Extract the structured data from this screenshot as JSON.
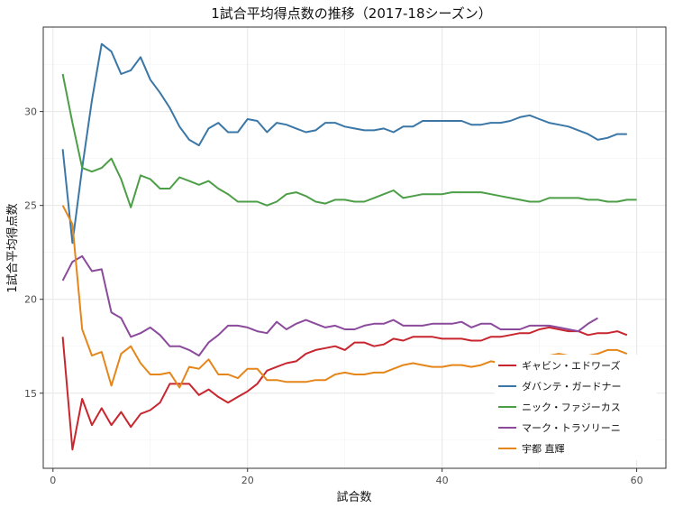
{
  "chart_data": {
    "type": "line",
    "title": "1試合平均得点数の推移（2017-18シーズン）",
    "xlabel": "試合数",
    "ylabel": "1試合平均得点数",
    "xlim": [
      -1,
      63
    ],
    "ylim": [
      11,
      34.5
    ],
    "xticks": [
      0,
      20,
      40,
      60
    ],
    "yticks": [
      15,
      20,
      25,
      30
    ],
    "grid": true,
    "legend_position": "bottom-right",
    "series": [
      {
        "name": "ギャビン・エドワーズ",
        "color": "#c8262e",
        "x": [
          1,
          2,
          3,
          4,
          5,
          6,
          7,
          8,
          9,
          10,
          11,
          12,
          13,
          14,
          15,
          16,
          17,
          18,
          19,
          20,
          21,
          22,
          23,
          24,
          25,
          26,
          27,
          28,
          29,
          30,
          31,
          32,
          33,
          34,
          35,
          36,
          37,
          38,
          39,
          40,
          41,
          42,
          43,
          44,
          45,
          46,
          47,
          48,
          49,
          50,
          51,
          52,
          53,
          54,
          55,
          56,
          57,
          58,
          59
        ],
        "values": [
          18.0,
          12.0,
          14.7,
          13.3,
          14.2,
          13.3,
          14.0,
          13.2,
          13.9,
          14.1,
          14.5,
          15.5,
          15.5,
          15.5,
          14.9,
          15.2,
          14.8,
          14.5,
          14.8,
          15.1,
          15.5,
          16.2,
          16.4,
          16.6,
          16.7,
          17.1,
          17.3,
          17.4,
          17.5,
          17.3,
          17.7,
          17.7,
          17.5,
          17.6,
          17.9,
          17.8,
          18.0,
          18.0,
          18.0,
          17.9,
          17.9,
          17.9,
          17.8,
          17.8,
          18.0,
          18.0,
          18.1,
          18.2,
          18.2,
          18.4,
          18.5,
          18.4,
          18.3,
          18.3,
          18.1,
          18.2,
          18.2,
          18.3,
          18.1
        ]
      },
      {
        "name": "ダバンテ・ガードナー",
        "color": "#3b77a6",
        "x": [
          1,
          2,
          3,
          4,
          5,
          6,
          7,
          8,
          9,
          10,
          11,
          12,
          13,
          14,
          15,
          16,
          17,
          18,
          19,
          20,
          21,
          22,
          23,
          24,
          25,
          26,
          27,
          28,
          29,
          30,
          31,
          32,
          33,
          34,
          35,
          36,
          37,
          38,
          39,
          40,
          41,
          42,
          43,
          44,
          45,
          46,
          47,
          48,
          49,
          50,
          51,
          52,
          53,
          54,
          55,
          56,
          57,
          58,
          59
        ],
        "values": [
          28.0,
          23.0,
          27.0,
          30.6,
          33.6,
          33.2,
          32.0,
          32.2,
          32.9,
          31.7,
          31.0,
          30.2,
          29.2,
          28.5,
          28.2,
          29.1,
          29.4,
          28.9,
          28.9,
          29.6,
          29.5,
          28.9,
          29.4,
          29.3,
          29.1,
          28.9,
          29.0,
          29.4,
          29.4,
          29.2,
          29.1,
          29.0,
          29.0,
          29.1,
          28.9,
          29.2,
          29.2,
          29.5,
          29.5,
          29.5,
          29.5,
          29.5,
          29.3,
          29.3,
          29.4,
          29.4,
          29.5,
          29.7,
          29.8,
          29.6,
          29.4,
          29.3,
          29.2,
          29.0,
          28.8,
          28.5,
          28.6,
          28.8,
          28.8
        ]
      },
      {
        "name": "ニック・ファジーカス",
        "color": "#4c9e47",
        "x": [
          1,
          2,
          3,
          4,
          5,
          6,
          7,
          8,
          9,
          10,
          11,
          12,
          13,
          14,
          15,
          16,
          17,
          18,
          19,
          20,
          21,
          22,
          23,
          24,
          25,
          26,
          27,
          28,
          29,
          30,
          31,
          32,
          33,
          34,
          35,
          36,
          37,
          38,
          39,
          40,
          41,
          42,
          43,
          44,
          45,
          46,
          47,
          48,
          49,
          50,
          51,
          52,
          53,
          54,
          55,
          56,
          57,
          58,
          59,
          60
        ],
        "values": [
          32.0,
          29.4,
          27.0,
          26.8,
          27.0,
          27.5,
          26.4,
          24.9,
          26.6,
          26.4,
          25.9,
          25.9,
          26.5,
          26.3,
          26.1,
          26.3,
          25.9,
          25.6,
          25.2,
          25.2,
          25.2,
          25.0,
          25.2,
          25.6,
          25.7,
          25.5,
          25.2,
          25.1,
          25.3,
          25.3,
          25.2,
          25.2,
          25.4,
          25.6,
          25.8,
          25.4,
          25.5,
          25.6,
          25.6,
          25.6,
          25.7,
          25.7,
          25.7,
          25.7,
          25.6,
          25.5,
          25.4,
          25.3,
          25.2,
          25.2,
          25.4,
          25.4,
          25.4,
          25.4,
          25.3,
          25.3,
          25.2,
          25.2,
          25.3,
          25.3
        ]
      },
      {
        "name": "マーク・トラソリーニ",
        "color": "#8b4a9c",
        "x": [
          1,
          2,
          3,
          4,
          5,
          6,
          7,
          8,
          9,
          10,
          11,
          12,
          13,
          14,
          15,
          16,
          17,
          18,
          19,
          20,
          21,
          22,
          23,
          24,
          25,
          26,
          27,
          28,
          29,
          30,
          31,
          32,
          33,
          34,
          35,
          36,
          37,
          38,
          39,
          40,
          41,
          42,
          43,
          44,
          45,
          46,
          47,
          48,
          49,
          50,
          51,
          52,
          53,
          54,
          55,
          56
        ],
        "values": [
          21.0,
          22.0,
          22.3,
          21.5,
          21.6,
          19.3,
          19.0,
          18.0,
          18.2,
          18.5,
          18.1,
          17.5,
          17.5,
          17.3,
          17.0,
          17.7,
          18.1,
          18.6,
          18.6,
          18.5,
          18.3,
          18.2,
          18.8,
          18.4,
          18.7,
          18.9,
          18.7,
          18.5,
          18.6,
          18.4,
          18.4,
          18.6,
          18.7,
          18.7,
          18.9,
          18.6,
          18.6,
          18.6,
          18.7,
          18.7,
          18.7,
          18.8,
          18.5,
          18.7,
          18.7,
          18.4,
          18.4,
          18.4,
          18.6,
          18.6,
          18.6,
          18.5,
          18.4,
          18.3,
          18.7,
          19.0
        ]
      },
      {
        "name": "宇都 直輝",
        "color": "#e5861a",
        "x": [
          1,
          2,
          3,
          4,
          5,
          6,
          7,
          8,
          9,
          10,
          11,
          12,
          13,
          14,
          15,
          16,
          17,
          18,
          19,
          20,
          21,
          22,
          23,
          24,
          25,
          26,
          27,
          28,
          29,
          30,
          31,
          32,
          33,
          34,
          35,
          36,
          37,
          38,
          39,
          40,
          41,
          42,
          43,
          44,
          45,
          46,
          47,
          48,
          49,
          50,
          51,
          52,
          53,
          54,
          55,
          56,
          57,
          58,
          59
        ],
        "values": [
          25.0,
          24.0,
          18.4,
          17.0,
          17.2,
          15.4,
          17.1,
          17.5,
          16.6,
          16.0,
          16.0,
          16.1,
          15.3,
          16.4,
          16.3,
          16.8,
          16.0,
          16.0,
          15.8,
          16.3,
          16.3,
          15.7,
          15.7,
          15.6,
          15.6,
          15.6,
          15.7,
          15.7,
          16.0,
          16.1,
          16.0,
          16.0,
          16.1,
          16.1,
          16.3,
          16.5,
          16.6,
          16.5,
          16.4,
          16.4,
          16.5,
          16.5,
          16.4,
          16.5,
          16.7,
          16.6,
          16.6,
          16.8,
          16.9,
          17.0,
          17.0,
          17.1,
          17.0,
          17.0,
          17.0,
          17.1,
          17.3,
          17.3,
          17.1
        ]
      }
    ]
  }
}
